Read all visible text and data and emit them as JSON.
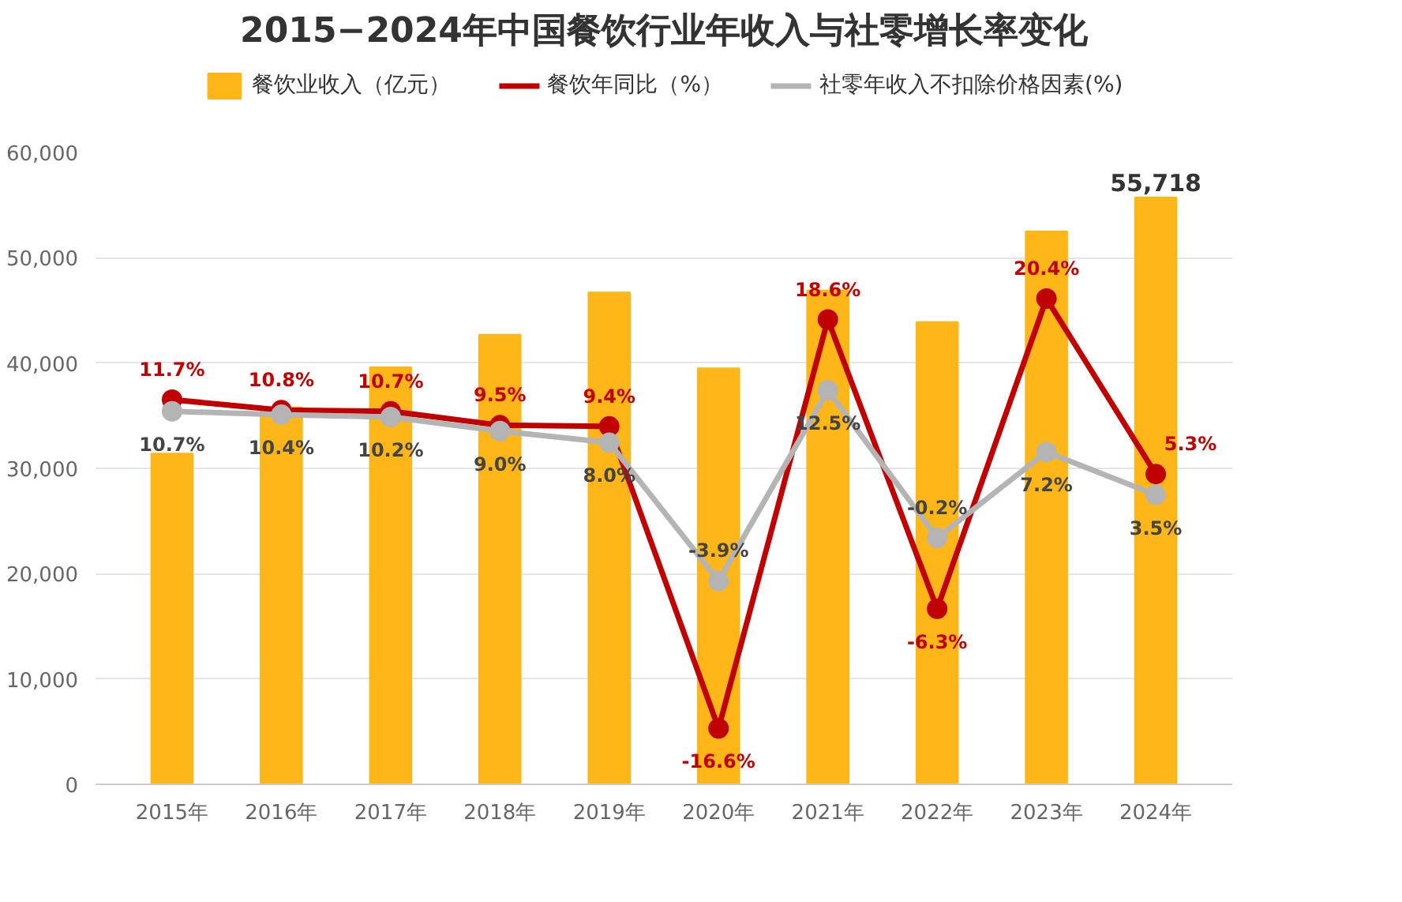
{
  "chart_data": {
    "type": "bar",
    "title": "2015−2024年中国餐饮行业年收入与社零增长率变化",
    "categories": [
      "2015年",
      "2016年",
      "2017年",
      "2018年",
      "2019年",
      "2020年",
      "2021年",
      "2022年",
      "2023年",
      "2024年"
    ],
    "ylim": [
      0,
      60000
    ],
    "yticks": [
      {
        "value": 0,
        "label": "0"
      },
      {
        "value": 10000,
        "label": "10,000"
      },
      {
        "value": 20000,
        "label": "20,000"
      },
      {
        "value": 30000,
        "label": "30,000"
      },
      {
        "value": 40000,
        "label": "40,000"
      },
      {
        "value": 50000,
        "label": "50,000"
      },
      {
        "value": 60000,
        "label": "60,000"
      }
    ],
    "grid": "y",
    "legend": "top",
    "marker": "circle",
    "line_style": "solid",
    "series": [
      {
        "name": "餐饮业收入（亿元）",
        "color": "#ffb619",
        "values": [
          31400,
          35800,
          39600,
          42700,
          46700,
          39500,
          46900,
          43900,
          52500,
          55718
        ],
        "value_labels": [
          null,
          null,
          null,
          null,
          null,
          null,
          null,
          null,
          null,
          "55,718"
        ]
      },
      {
        "name": "餐饮年同比（%）",
        "type": "line",
        "axis": "y2",
        "color": "#c00000",
        "values": [
          11.7,
          10.8,
          10.7,
          9.5,
          9.4,
          -16.6,
          18.6,
          -6.3,
          20.4,
          5.3
        ],
        "value_labels": [
          "11.7%",
          "10.8%",
          "10.7%",
          "9.5%",
          "9.4%",
          "-16.6%",
          "18.6%",
          "-6.3%",
          "20.4%",
          "5.3%"
        ]
      },
      {
        "name": "社零年收入不扣除价格因素(%)",
        "type": "line",
        "axis": "y2",
        "color": "#b4b4b4",
        "values": [
          10.7,
          10.4,
          10.2,
          9.0,
          8.0,
          -3.9,
          12.5,
          -0.2,
          7.2,
          3.5
        ],
        "value_labels": [
          "10.7%",
          "10.4%",
          "10.2%",
          "9.0%",
          "8.0%",
          "-3.9%",
          "12.5%",
          "-0.2%",
          "7.2%",
          "3.5%"
        ]
      }
    ]
  }
}
